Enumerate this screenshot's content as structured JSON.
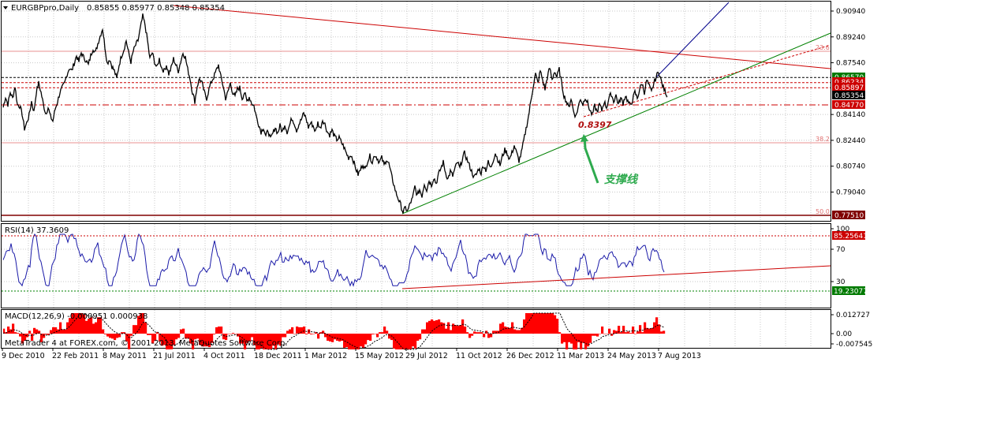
{
  "chart_data": {
    "type": "line",
    "symbol": "EURGBPpro,Daily",
    "ohlc_header": "0.85855 0.85977 0.85348 0.85354",
    "main_panel": {
      "y_ticks": [
        "0.90940",
        "0.89240",
        "0.87540",
        "0.84140",
        "0.82440",
        "0.80740",
        "0.79040"
      ],
      "ylim": [
        0.77,
        0.914
      ],
      "price_path": [
        [
          0,
          0.846
        ],
        [
          3,
          0.853
        ],
        [
          6,
          0.848
        ],
        [
          9,
          0.856
        ],
        [
          12,
          0.852
        ],
        [
          15,
          0.86
        ],
        [
          18,
          0.848
        ],
        [
          21,
          0.847
        ],
        [
          24,
          0.842
        ],
        [
          27,
          0.832
        ],
        [
          30,
          0.836
        ],
        [
          33,
          0.841
        ],
        [
          36,
          0.85
        ],
        [
          39,
          0.843
        ],
        [
          42,
          0.856
        ],
        [
          45,
          0.862
        ],
        [
          48,
          0.856
        ],
        [
          51,
          0.848
        ],
        [
          54,
          0.842
        ],
        [
          57,
          0.846
        ],
        [
          60,
          0.84
        ],
        [
          63,
          0.837
        ],
        [
          66,
          0.845
        ],
        [
          69,
          0.85
        ],
        [
          72,
          0.856
        ],
        [
          75,
          0.859
        ],
        [
          78,
          0.862
        ],
        [
          81,
          0.868
        ],
        [
          84,
          0.872
        ],
        [
          87,
          0.87
        ],
        [
          90,
          0.875
        ],
        [
          93,
          0.88
        ],
        [
          96,
          0.876
        ],
        [
          99,
          0.882
        ],
        [
          102,
          0.879
        ],
        [
          105,
          0.877
        ],
        [
          108,
          0.874
        ],
        [
          111,
          0.88
        ],
        [
          114,
          0.885
        ],
        [
          117,
          0.882
        ],
        [
          120,
          0.888
        ],
        [
          123,
          0.893
        ],
        [
          126,
          0.898
        ],
        [
          129,
          0.886
        ],
        [
          132,
          0.875
        ],
        [
          135,
          0.878
        ],
        [
          138,
          0.873
        ],
        [
          141,
          0.87
        ],
        [
          144,
          0.865
        ],
        [
          147,
          0.874
        ],
        [
          150,
          0.88
        ],
        [
          153,
          0.884
        ],
        [
          156,
          0.89
        ],
        [
          159,
          0.882
        ],
        [
          162,
          0.876
        ],
        [
          165,
          0.883
        ],
        [
          168,
          0.887
        ],
        [
          171,
          0.89
        ],
        [
          174,
          0.898
        ],
        [
          177,
          0.906
        ],
        [
          180,
          0.9
        ],
        [
          183,
          0.89
        ],
        [
          186,
          0.878
        ],
        [
          189,
          0.882
        ],
        [
          192,
          0.876
        ],
        [
          195,
          0.872
        ],
        [
          198,
          0.878
        ],
        [
          201,
          0.872
        ],
        [
          204,
          0.87
        ],
        [
          207,
          0.874
        ],
        [
          210,
          0.868
        ],
        [
          213,
          0.872
        ],
        [
          216,
          0.878
        ],
        [
          219,
          0.874
        ],
        [
          222,
          0.87
        ],
        [
          225,
          0.876
        ],
        [
          228,
          0.882
        ],
        [
          231,
          0.879
        ],
        [
          234,
          0.871
        ],
        [
          237,
          0.865
        ],
        [
          240,
          0.856
        ],
        [
          243,
          0.85
        ],
        [
          246,
          0.86
        ],
        [
          249,
          0.865
        ],
        [
          252,
          0.862
        ],
        [
          255,
          0.856
        ],
        [
          258,
          0.852
        ],
        [
          261,
          0.858
        ],
        [
          264,
          0.863
        ],
        [
          267,
          0.866
        ],
        [
          270,
          0.87
        ],
        [
          273,
          0.874
        ],
        [
          276,
          0.866
        ],
        [
          279,
          0.86
        ],
        [
          282,
          0.852
        ],
        [
          285,
          0.856
        ],
        [
          288,
          0.862
        ],
        [
          291,
          0.856
        ],
        [
          294,
          0.853
        ],
        [
          297,
          0.858
        ],
        [
          300,
          0.859
        ],
        [
          303,
          0.852
        ],
        [
          306,
          0.856
        ],
        [
          309,
          0.85
        ],
        [
          312,
          0.853
        ],
        [
          315,
          0.849
        ],
        [
          318,
          0.847
        ],
        [
          321,
          0.84
        ],
        [
          324,
          0.835
        ],
        [
          327,
          0.83
        ],
        [
          330,
          0.833
        ],
        [
          333,
          0.827
        ],
        [
          336,
          0.831
        ],
        [
          339,
          0.825
        ],
        [
          342,
          0.829
        ],
        [
          345,
          0.833
        ],
        [
          348,
          0.829
        ],
        [
          351,
          0.834
        ],
        [
          354,
          0.83
        ],
        [
          357,
          0.835
        ],
        [
          360,
          0.83
        ],
        [
          363,
          0.834
        ],
        [
          366,
          0.839
        ],
        [
          369,
          0.836
        ],
        [
          372,
          0.831
        ],
        [
          375,
          0.835
        ],
        [
          378,
          0.838
        ],
        [
          381,
          0.842
        ],
        [
          384,
          0.839
        ],
        [
          387,
          0.833
        ],
        [
          390,
          0.836
        ],
        [
          393,
          0.834
        ],
        [
          396,
          0.83
        ],
        [
          399,
          0.836
        ],
        [
          402,
          0.832
        ],
        [
          405,
          0.838
        ],
        [
          408,
          0.835
        ],
        [
          411,
          0.83
        ],
        [
          414,
          0.828
        ],
        [
          417,
          0.831
        ],
        [
          420,
          0.827
        ],
        [
          423,
          0.825
        ],
        [
          426,
          0.826
        ],
        [
          429,
          0.823
        ],
        [
          432,
          0.82
        ],
        [
          435,
          0.816
        ],
        [
          438,
          0.813
        ],
        [
          441,
          0.815
        ],
        [
          444,
          0.811
        ],
        [
          447,
          0.806
        ],
        [
          450,
          0.802
        ],
        [
          453,
          0.805
        ],
        [
          456,
          0.809
        ],
        [
          459,
          0.805
        ],
        [
          462,
          0.811
        ],
        [
          465,
          0.814
        ],
        [
          468,
          0.81
        ],
        [
          471,
          0.815
        ],
        [
          474,
          0.813
        ],
        [
          477,
          0.81
        ],
        [
          480,
          0.813
        ],
        [
          483,
          0.808
        ],
        [
          486,
          0.812
        ],
        [
          489,
          0.809
        ],
        [
          492,
          0.802
        ],
        [
          495,
          0.796
        ],
        [
          498,
          0.79
        ],
        [
          501,
          0.786
        ],
        [
          504,
          0.782
        ],
        [
          507,
          0.777
        ],
        [
          510,
          0.78
        ],
        [
          513,
          0.778
        ],
        [
          516,
          0.783
        ],
        [
          519,
          0.786
        ],
        [
          522,
          0.794
        ],
        [
          525,
          0.788
        ],
        [
          528,
          0.792
        ],
        [
          531,
          0.788
        ],
        [
          534,
          0.796
        ],
        [
          537,
          0.792
        ],
        [
          540,
          0.798
        ],
        [
          543,
          0.795
        ],
        [
          546,
          0.8
        ],
        [
          549,
          0.796
        ],
        [
          552,
          0.802
        ],
        [
          555,
          0.806
        ],
        [
          558,
          0.81
        ],
        [
          561,
          0.803
        ],
        [
          564,
          0.799
        ],
        [
          567,
          0.804
        ],
        [
          570,
          0.801
        ],
        [
          573,
          0.806
        ],
        [
          576,
          0.81
        ],
        [
          579,
          0.806
        ],
        [
          582,
          0.812
        ],
        [
          585,
          0.816
        ],
        [
          588,
          0.812
        ],
        [
          591,
          0.808
        ],
        [
          594,
          0.804
        ],
        [
          597,
          0.8
        ],
        [
          600,
          0.802
        ],
        [
          603,
          0.806
        ],
        [
          606,
          0.803
        ],
        [
          609,
          0.808
        ],
        [
          612,
          0.805
        ],
        [
          615,
          0.81
        ],
        [
          618,
          0.806
        ],
        [
          621,
          0.811
        ],
        [
          624,
          0.816
        ],
        [
          627,
          0.812
        ],
        [
          630,
          0.808
        ],
        [
          633,
          0.814
        ],
        [
          636,
          0.818
        ],
        [
          639,
          0.816
        ],
        [
          642,
          0.812
        ],
        [
          645,
          0.816
        ],
        [
          648,
          0.821
        ],
        [
          651,
          0.816
        ],
        [
          654,
          0.811
        ],
        [
          657,
          0.816
        ],
        [
          660,
          0.824
        ],
        [
          663,
          0.832
        ],
        [
          666,
          0.84
        ],
        [
          669,
          0.85
        ],
        [
          672,
          0.86
        ],
        [
          675,
          0.868
        ],
        [
          678,
          0.862
        ],
        [
          681,
          0.87
        ],
        [
          684,
          0.864
        ],
        [
          687,
          0.858
        ],
        [
          690,
          0.866
        ],
        [
          693,
          0.872
        ],
        [
          696,
          0.864
        ],
        [
          699,
          0.87
        ],
        [
          702,
          0.866
        ],
        [
          705,
          0.871
        ],
        [
          708,
          0.862
        ],
        [
          711,
          0.854
        ],
        [
          714,
          0.85
        ],
        [
          717,
          0.846
        ],
        [
          720,
          0.852
        ],
        [
          723,
          0.844
        ],
        [
          726,
          0.84
        ],
        [
          729,
          0.846
        ],
        [
          732,
          0.852
        ],
        [
          735,
          0.848
        ],
        [
          738,
          0.853
        ],
        [
          741,
          0.849
        ],
        [
          744,
          0.844
        ],
        [
          747,
          0.841
        ],
        [
          750,
          0.847
        ],
        [
          753,
          0.843
        ],
        [
          756,
          0.848
        ],
        [
          759,
          0.844
        ],
        [
          762,
          0.85
        ],
        [
          765,
          0.846
        ],
        [
          768,
          0.852
        ],
        [
          771,
          0.855
        ],
        [
          774,
          0.85
        ],
        [
          777,
          0.854
        ],
        [
          780,
          0.848
        ],
        [
          783,
          0.852
        ],
        [
          786,
          0.849
        ],
        [
          789,
          0.854
        ],
        [
          792,
          0.85
        ],
        [
          795,
          0.847
        ],
        [
          798,
          0.851
        ],
        [
          801,
          0.856
        ],
        [
          804,
          0.852
        ],
        [
          807,
          0.858
        ],
        [
          810,
          0.862
        ],
        [
          813,
          0.856
        ],
        [
          816,
          0.864
        ],
        [
          819,
          0.86
        ],
        [
          822,
          0.856
        ],
        [
          825,
          0.862
        ],
        [
          828,
          0.866
        ],
        [
          831,
          0.87
        ],
        [
          834,
          0.864
        ],
        [
          837,
          0.859
        ],
        [
          840,
          0.856
        ],
        [
          842,
          0.8535
        ]
      ],
      "price_labels": [
        {
          "text": "0.86570",
          "price": 0.8657,
          "color": "#007a00"
        },
        {
          "text": "0.86234",
          "price": 0.86234,
          "color": "#cc0000"
        },
        {
          "text": "0.85897",
          "price": 0.85897,
          "color": "#cc0000"
        },
        {
          "text": "0.85354",
          "price": 0.85354,
          "color": "#000000"
        },
        {
          "text": "0.84770",
          "price": 0.8477,
          "color": "#cc0000"
        },
        {
          "text": "0.77510",
          "price": 0.7751,
          "color": "#800000"
        }
      ],
      "fib_labels": [
        {
          "text": "23.6",
          "price": 0.8792
        },
        {
          "text": "38.2",
          "price": 0.8237
        },
        {
          "text": "50.0",
          "price": 0.7752
        }
      ],
      "annotation_low": "0.8397",
      "annotation_text": "支撑线"
    },
    "rsi_panel": {
      "title": "RSI(14) 37.3609",
      "ticks": [
        "100",
        "70",
        "30"
      ],
      "level_labels": [
        {
          "text": "85.25641",
          "value": 85.25641,
          "color": "#cc0000"
        },
        {
          "text": "19.23077",
          "value": 19.23077,
          "color": "#007a00"
        }
      ],
      "values_seed": 14
    },
    "macd_panel": {
      "title": "MACD(12,26,9) -0.000951 0.000938",
      "ticks": [
        "0.012727",
        "0.00",
        "-0.007545"
      ],
      "watermark": "MetaTrader 4 at FOREX.com, © 2001-2013, MetaQuotes Software Corp."
    },
    "x_labels": [
      "9 Dec 2010",
      "22 Feb 2011",
      "8 May 2011",
      "21 Jul 2011",
      "4 Oct 2011",
      "18 Dec 2011",
      "1 Mar 2012",
      "15 May 2012",
      "29 Jul 2012",
      "11 Oct 2012",
      "26 Dec 2012",
      "11 Mar 2013",
      "24 May 2013",
      "7 Aug 2013"
    ]
  }
}
